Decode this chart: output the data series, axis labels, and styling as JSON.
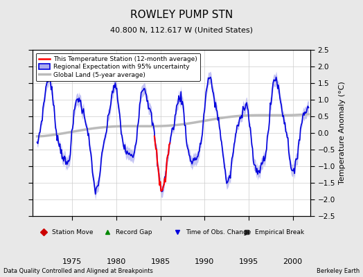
{
  "title": "ROWLEY PUMP STN",
  "subtitle": "40.800 N, 112.617 W (United States)",
  "ylabel": "Temperature Anomaly (°C)",
  "xlabel_note": "Data Quality Controlled and Aligned at Breakpoints",
  "brand": "Berkeley Earth",
  "ylim": [
    -2.5,
    2.5
  ],
  "xlim": [
    1970.5,
    2002.0
  ],
  "xticks": [
    1975,
    1980,
    1985,
    1990,
    1995,
    2000
  ],
  "yticks": [
    -2.5,
    -2,
    -1.5,
    -1,
    -0.5,
    0,
    0.5,
    1,
    1.5,
    2,
    2.5
  ],
  "bg_color": "#e8e8e8",
  "plot_bg_color": "#ffffff",
  "regional_color": "#0000dd",
  "regional_fill_color": "#aaaaee",
  "station_color": "#ff0000",
  "global_color": "#bbbbbb",
  "global_linewidth": 2.5,
  "regional_linewidth": 1.2,
  "station_linewidth": 1.5,
  "legend_items": [
    {
      "label": "This Temperature Station (12-month average)",
      "color": "#ff0000",
      "lw": 2
    },
    {
      "label": "Regional Expectation with 95% uncertainty",
      "color": "#0000dd",
      "lw": 1.5
    },
    {
      "label": "Global Land (5-year average)",
      "color": "#bbbbbb",
      "lw": 3
    }
  ],
  "bottom_legend": [
    {
      "label": "Station Move",
      "marker": "D",
      "color": "#cc0000"
    },
    {
      "label": "Record Gap",
      "marker": "^",
      "color": "#008800"
    },
    {
      "label": "Time of Obs. Change",
      "marker": "v",
      "color": "#0000dd"
    },
    {
      "label": "Empirical Break",
      "marker": "s",
      "color": "#333333"
    }
  ]
}
